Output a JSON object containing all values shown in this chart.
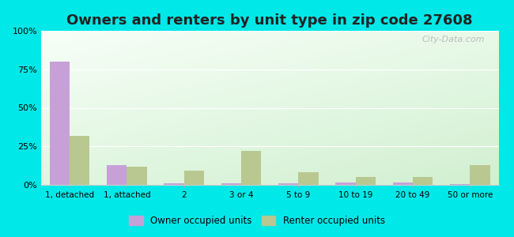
{
  "title": "Owners and renters by unit type in zip code 27608",
  "categories": [
    "1, detached",
    "1, attached",
    "2",
    "3 or 4",
    "5 to 9",
    "10 to 19",
    "20 to 49",
    "50 or more"
  ],
  "owner_values": [
    80,
    13,
    0.8,
    0.8,
    0.8,
    1.5,
    1.5,
    0.5
  ],
  "renter_values": [
    32,
    12,
    9,
    22,
    8,
    5,
    5,
    13
  ],
  "owner_color": "#c8a0d8",
  "renter_color": "#b8c890",
  "ylim": [
    0,
    100
  ],
  "yticks": [
    0,
    25,
    50,
    75,
    100
  ],
  "ytick_labels": [
    "0%",
    "25%",
    "50%",
    "75%",
    "100%"
  ],
  "background_color": "#00e8e8",
  "owner_label": "Owner occupied units",
  "renter_label": "Renter occupied units",
  "watermark": "City-Data.com",
  "title_fontsize": 13,
  "bar_width": 0.35
}
